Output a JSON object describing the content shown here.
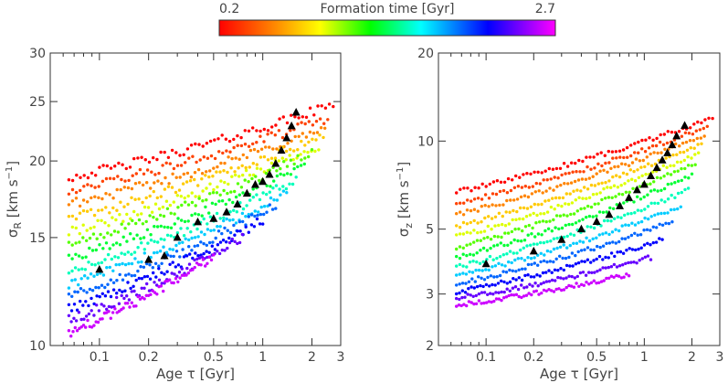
{
  "colorbar": {
    "title": "Formation time [Gyr]",
    "min_label": "0.2",
    "max_label": "2.7",
    "min": 0.2,
    "max": 2.7,
    "colormap": "rainbow (red → yellow → green → cyan → blue → magenta)"
  },
  "chart_data": [
    {
      "type": "scatter",
      "xscale": "log",
      "yscale": "log",
      "xlim": [
        0.05,
        3
      ],
      "ylim": [
        10,
        30
      ],
      "xlabel_main": "Age",
      "xlabel_symbol": "τ",
      "xlabel_unit": "[Gyr]",
      "ylabel_symbol": "σ",
      "ylabel_sub": "R",
      "ylabel_unit_base": "[km s",
      "ylabel_unit_sup": "−1",
      "ylabel_unit_close": "]",
      "x_ticks": [
        {
          "v": 0.1,
          "label": "0.1"
        },
        {
          "v": 0.2,
          "label": "0.2"
        },
        {
          "v": 0.5,
          "label": "0.5"
        },
        {
          "v": 1,
          "label": "1"
        },
        {
          "v": 2,
          "label": "2"
        },
        {
          "v": 3,
          "label": "3"
        }
      ],
      "y_ticks": [
        {
          "v": 10,
          "label": "10"
        },
        {
          "v": 15,
          "label": "15"
        },
        {
          "v": 20,
          "label": "20"
        },
        {
          "v": 25,
          "label": "25"
        },
        {
          "v": 30,
          "label": "30"
        }
      ],
      "tracks": [
        {
          "tf": 0.2,
          "start": [
            0.065,
            18.8
          ],
          "end": [
            2.7,
            24.7
          ]
        },
        {
          "tf": 0.4,
          "start": [
            0.065,
            17.9
          ],
          "end": [
            2.5,
            23.5
          ]
        },
        {
          "tf": 0.6,
          "start": [
            0.065,
            17.0
          ],
          "end": [
            2.4,
            22.6
          ]
        },
        {
          "tf": 0.8,
          "start": [
            0.065,
            16.1
          ],
          "end": [
            2.35,
            22.0
          ]
        },
        {
          "tf": 1.0,
          "start": [
            0.065,
            15.3
          ],
          "end": [
            2.2,
            21.2
          ]
        },
        {
          "tf": 1.2,
          "start": [
            0.065,
            14.6
          ],
          "end": [
            2.0,
            20.6
          ]
        },
        {
          "tf": 1.4,
          "start": [
            0.065,
            13.9
          ],
          "end": [
            1.8,
            19.6
          ]
        },
        {
          "tf": 1.6,
          "start": [
            0.065,
            13.2
          ],
          "end": [
            1.6,
            18.6
          ]
        },
        {
          "tf": 1.8,
          "start": [
            0.065,
            12.6
          ],
          "end": [
            1.4,
            17.7
          ]
        },
        {
          "tf": 2.0,
          "start": [
            0.065,
            12.0
          ],
          "end": [
            1.2,
            16.9
          ]
        },
        {
          "tf": 2.2,
          "start": [
            0.065,
            11.5
          ],
          "end": [
            1.0,
            16.0
          ]
        },
        {
          "tf": 2.4,
          "start": [
            0.065,
            11.0
          ],
          "end": [
            0.75,
            15.0
          ]
        },
        {
          "tf": 2.6,
          "start": [
            0.065,
            10.5
          ],
          "end": [
            0.5,
            14.0
          ]
        }
      ],
      "medians": {
        "x": [
          0.1,
          0.2,
          0.25,
          0.3,
          0.4,
          0.5,
          0.6,
          0.7,
          0.8,
          0.9,
          1.0,
          1.1,
          1.2,
          1.3,
          1.4,
          1.5,
          1.6
        ],
        "y": [
          13.3,
          13.8,
          14.0,
          15.0,
          15.9,
          16.1,
          16.5,
          17.0,
          17.7,
          18.3,
          18.5,
          19.0,
          19.8,
          20.8,
          21.8,
          22.8,
          24.0
        ]
      }
    },
    {
      "type": "scatter",
      "xscale": "log",
      "yscale": "log",
      "xlim": [
        0.05,
        3
      ],
      "ylim": [
        2,
        20
      ],
      "xlabel_main": "Age",
      "xlabel_symbol": "τ",
      "xlabel_unit": "[Gyr]",
      "ylabel_symbol": "σ",
      "ylabel_sub": "z",
      "ylabel_unit_base": "[km s",
      "ylabel_unit_sup": "−1",
      "ylabel_unit_close": "]",
      "x_ticks": [
        {
          "v": 0.1,
          "label": "0.1"
        },
        {
          "v": 0.2,
          "label": "0.2"
        },
        {
          "v": 0.5,
          "label": "0.5"
        },
        {
          "v": 1,
          "label": "1"
        },
        {
          "v": 2,
          "label": "2"
        },
        {
          "v": 3,
          "label": "3"
        }
      ],
      "y_ticks": [
        {
          "v": 2,
          "label": "2"
        },
        {
          "v": 3,
          "label": "3"
        },
        {
          "v": 5,
          "label": "5"
        },
        {
          "v": 10,
          "label": "10"
        },
        {
          "v": 20,
          "label": "20"
        }
      ],
      "tracks": [
        {
          "tf": 0.2,
          "start": [
            0.065,
            6.7
          ],
          "end": [
            2.7,
            12.0
          ]
        },
        {
          "tf": 0.4,
          "start": [
            0.065,
            6.1
          ],
          "end": [
            2.5,
            11.2
          ]
        },
        {
          "tf": 0.6,
          "start": [
            0.065,
            5.6
          ],
          "end": [
            2.4,
            10.5
          ]
        },
        {
          "tf": 0.8,
          "start": [
            0.065,
            5.1
          ],
          "end": [
            2.3,
            9.8
          ]
        },
        {
          "tf": 1.0,
          "start": [
            0.065,
            4.7
          ],
          "end": [
            2.2,
            9.1
          ]
        },
        {
          "tf": 1.2,
          "start": [
            0.065,
            4.3
          ],
          "end": [
            2.1,
            8.4
          ]
        },
        {
          "tf": 1.4,
          "start": [
            0.065,
            4.0
          ],
          "end": [
            2.0,
            7.6
          ]
        },
        {
          "tf": 1.6,
          "start": [
            0.065,
            3.7
          ],
          "end": [
            1.9,
            6.8
          ]
        },
        {
          "tf": 1.8,
          "start": [
            0.065,
            3.45
          ],
          "end": [
            1.7,
            6.0
          ]
        },
        {
          "tf": 2.0,
          "start": [
            0.065,
            3.25
          ],
          "end": [
            1.5,
            5.3
          ]
        },
        {
          "tf": 2.2,
          "start": [
            0.065,
            3.05
          ],
          "end": [
            1.3,
            4.6
          ]
        },
        {
          "tf": 2.4,
          "start": [
            0.065,
            2.9
          ],
          "end": [
            1.1,
            4.0
          ]
        },
        {
          "tf": 2.6,
          "start": [
            0.065,
            2.75
          ],
          "end": [
            0.8,
            3.5
          ]
        }
      ],
      "medians": {
        "x": [
          0.1,
          0.2,
          0.3,
          0.4,
          0.5,
          0.6,
          0.7,
          0.8,
          0.9,
          1.0,
          1.1,
          1.2,
          1.3,
          1.4,
          1.5,
          1.6,
          1.8
        ],
        "y": [
          3.8,
          4.2,
          4.6,
          5.0,
          5.3,
          5.6,
          6.0,
          6.4,
          6.8,
          7.1,
          7.6,
          8.1,
          8.6,
          9.1,
          9.7,
          10.4,
          11.3
        ]
      }
    }
  ]
}
